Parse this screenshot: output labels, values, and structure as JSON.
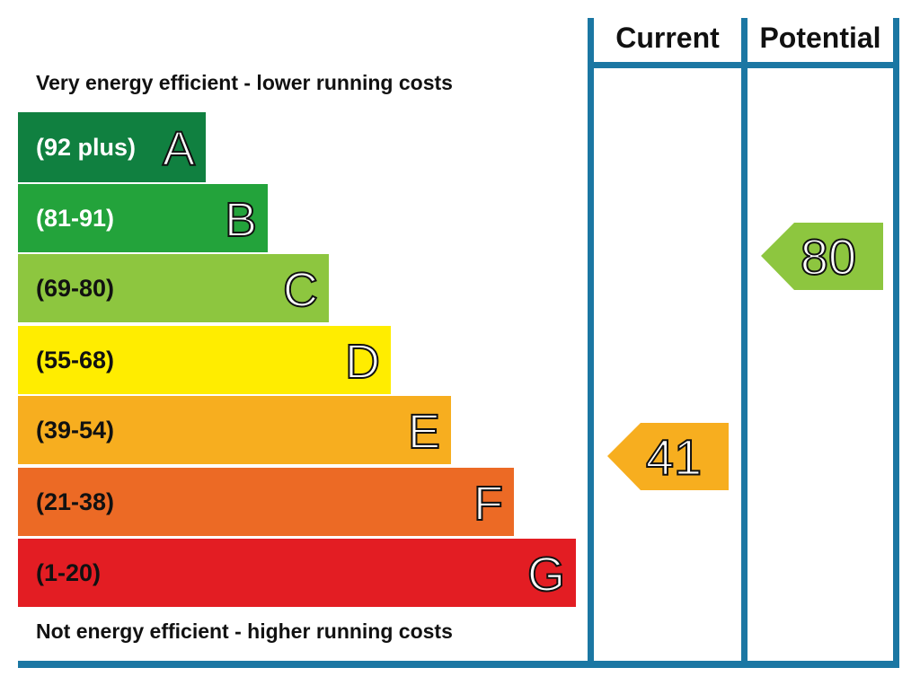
{
  "header": {
    "current": "Current",
    "potential": "Potential"
  },
  "top_note": "Very energy efficient - lower running costs",
  "bottom_note": "Not energy efficient - higher running costs",
  "bands": [
    {
      "range": "(92 plus)",
      "letter": "A"
    },
    {
      "range": "(81-91)",
      "letter": "B"
    },
    {
      "range": "(69-80)",
      "letter": "C"
    },
    {
      "range": "(55-68)",
      "letter": "D"
    },
    {
      "range": "(39-54)",
      "letter": "E"
    },
    {
      "range": "(21-38)",
      "letter": "F"
    },
    {
      "range": "(1-20)",
      "letter": "G"
    }
  ],
  "current": {
    "value": 41
  },
  "potential": {
    "value": 80
  }
}
